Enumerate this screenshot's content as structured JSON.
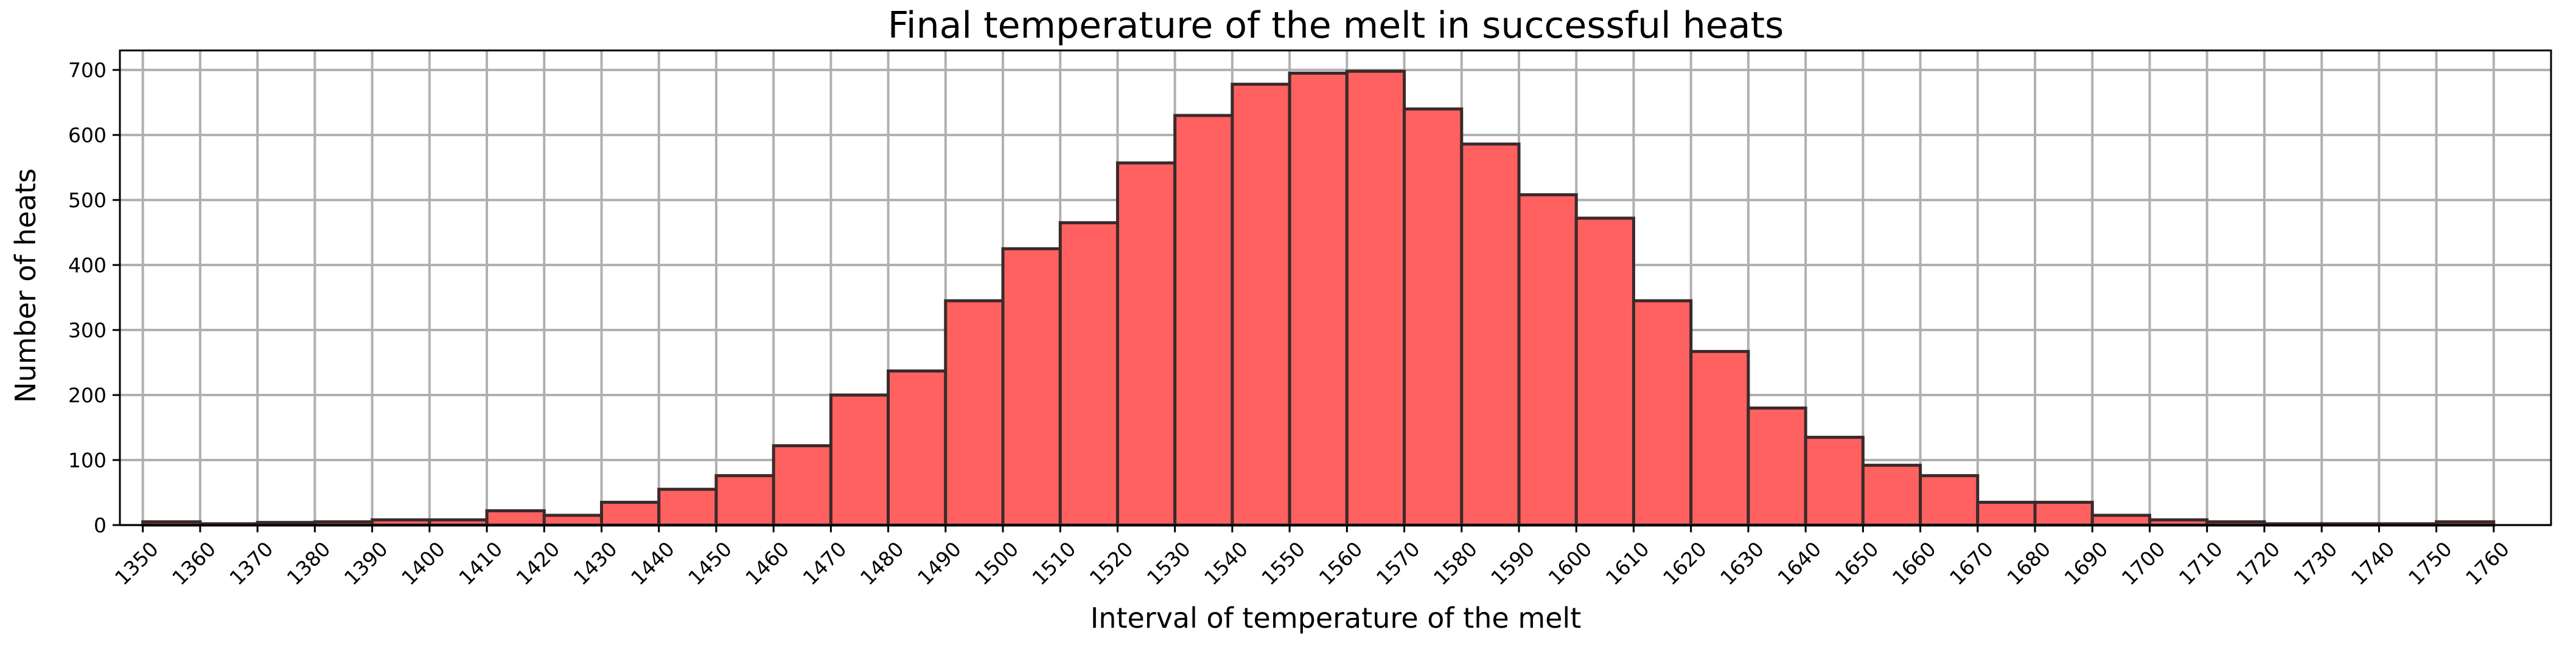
{
  "chart_data": {
    "type": "bar",
    "title": "Final temperature of the melt in successful heats",
    "xlabel": "Interval of temperature of the melt",
    "ylabel": "Number of heats",
    "bar_color": "#ff6161",
    "edge_color": "#3a2a2a",
    "grid": true,
    "xlim": [
      1346,
      1770
    ],
    "ylim": [
      0,
      730
    ],
    "xticks": [
      1350,
      1360,
      1370,
      1380,
      1390,
      1400,
      1410,
      1420,
      1430,
      1440,
      1450,
      1460,
      1470,
      1480,
      1490,
      1500,
      1510,
      1520,
      1530,
      1540,
      1550,
      1560,
      1570,
      1580,
      1590,
      1600,
      1610,
      1620,
      1630,
      1640,
      1650,
      1660,
      1670,
      1680,
      1690,
      1700,
      1710,
      1720,
      1730,
      1740,
      1750,
      1760
    ],
    "yticks": [
      0,
      100,
      200,
      300,
      400,
      500,
      600,
      700
    ],
    "bins": [
      {
        "x0": 1350,
        "x1": 1360,
        "value": 5
      },
      {
        "x0": 1360,
        "x1": 1370,
        "value": 2
      },
      {
        "x0": 1370,
        "x1": 1380,
        "value": 4
      },
      {
        "x0": 1380,
        "x1": 1390,
        "value": 5
      },
      {
        "x0": 1390,
        "x1": 1400,
        "value": 8
      },
      {
        "x0": 1400,
        "x1": 1410,
        "value": 8
      },
      {
        "x0": 1410,
        "x1": 1420,
        "value": 22
      },
      {
        "x0": 1420,
        "x1": 1430,
        "value": 15
      },
      {
        "x0": 1430,
        "x1": 1440,
        "value": 35
      },
      {
        "x0": 1440,
        "x1": 1450,
        "value": 55
      },
      {
        "x0": 1450,
        "x1": 1460,
        "value": 76
      },
      {
        "x0": 1460,
        "x1": 1470,
        "value": 122
      },
      {
        "x0": 1470,
        "x1": 1480,
        "value": 200
      },
      {
        "x0": 1480,
        "x1": 1490,
        "value": 237
      },
      {
        "x0": 1490,
        "x1": 1500,
        "value": 345
      },
      {
        "x0": 1500,
        "x1": 1510,
        "value": 425
      },
      {
        "x0": 1510,
        "x1": 1520,
        "value": 465
      },
      {
        "x0": 1520,
        "x1": 1530,
        "value": 557
      },
      {
        "x0": 1530,
        "x1": 1540,
        "value": 630
      },
      {
        "x0": 1540,
        "x1": 1550,
        "value": 678
      },
      {
        "x0": 1550,
        "x1": 1560,
        "value": 695
      },
      {
        "x0": 1560,
        "x1": 1570,
        "value": 698
      },
      {
        "x0": 1570,
        "x1": 1580,
        "value": 640
      },
      {
        "x0": 1580,
        "x1": 1590,
        "value": 586
      },
      {
        "x0": 1590,
        "x1": 1600,
        "value": 508
      },
      {
        "x0": 1600,
        "x1": 1610,
        "value": 472
      },
      {
        "x0": 1610,
        "x1": 1620,
        "value": 345
      },
      {
        "x0": 1620,
        "x1": 1630,
        "value": 267
      },
      {
        "x0": 1630,
        "x1": 1640,
        "value": 180
      },
      {
        "x0": 1640,
        "x1": 1650,
        "value": 135
      },
      {
        "x0": 1650,
        "x1": 1660,
        "value": 92
      },
      {
        "x0": 1660,
        "x1": 1670,
        "value": 76
      },
      {
        "x0": 1670,
        "x1": 1680,
        "value": 35
      },
      {
        "x0": 1680,
        "x1": 1690,
        "value": 35
      },
      {
        "x0": 1690,
        "x1": 1700,
        "value": 15
      },
      {
        "x0": 1700,
        "x1": 1710,
        "value": 8
      },
      {
        "x0": 1710,
        "x1": 1720,
        "value": 5
      },
      {
        "x0": 1720,
        "x1": 1730,
        "value": 2
      },
      {
        "x0": 1730,
        "x1": 1740,
        "value": 2
      },
      {
        "x0": 1740,
        "x1": 1750,
        "value": 2
      },
      {
        "x0": 1750,
        "x1": 1760,
        "value": 5
      }
    ]
  }
}
